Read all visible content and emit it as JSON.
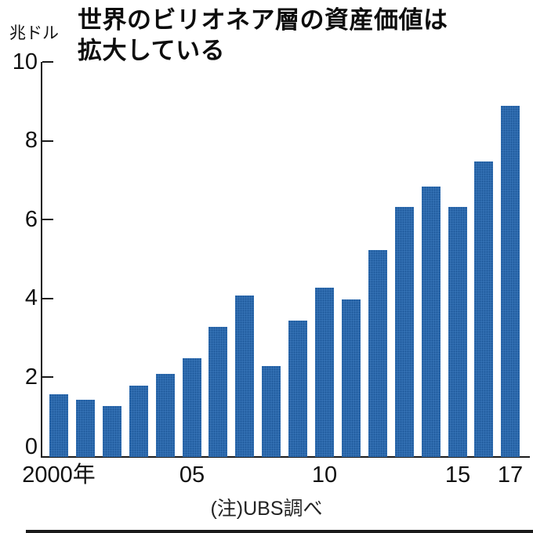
{
  "title": {
    "line1": "世界のビリオネア層の資産価値は",
    "line2": "拡大している"
  },
  "y_axis_unit": "兆ドル",
  "note": "(注)UBS調べ",
  "colors": {
    "bar": "#3875b8",
    "bar_halftone_dot": "#1d5899",
    "axis": "#1a1a1a",
    "background": "#ffffff"
  },
  "chart_data": {
    "type": "bar",
    "title": "世界のビリオネア層の資産価値は拡大している",
    "xlabel": "",
    "ylabel": "兆ドル",
    "ylim": [
      0,
      10
    ],
    "y_ticks": [
      0,
      2,
      4,
      6,
      8,
      10
    ],
    "grid": false,
    "legend": null,
    "categories": [
      "2000",
      "2001",
      "2002",
      "2003",
      "2004",
      "2005",
      "2006",
      "2007",
      "2008",
      "2009",
      "2010",
      "2011",
      "2012",
      "2013",
      "2014",
      "2015",
      "2016",
      "2017"
    ],
    "values": [
      1.6,
      1.45,
      1.3,
      1.8,
      2.1,
      2.5,
      3.3,
      4.1,
      2.3,
      3.45,
      4.3,
      4.0,
      5.25,
      6.35,
      6.85,
      6.35,
      7.5,
      8.9
    ],
    "x_tick_labels": [
      {
        "label": "2000年",
        "index": 0
      },
      {
        "label": "05",
        "index": 5
      },
      {
        "label": "10",
        "index": 10
      },
      {
        "label": "15",
        "index": 15
      },
      {
        "label": "17",
        "index": 17
      }
    ],
    "note": "(注)UBS調べ"
  }
}
